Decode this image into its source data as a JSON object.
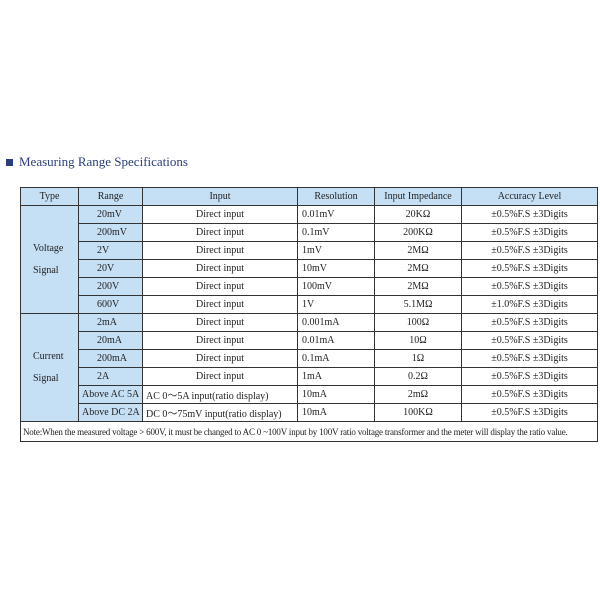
{
  "title": "Measuring Range Specifications",
  "headers": [
    "Type",
    "Range",
    "Input",
    "Resolution",
    "Input Impedance",
    "Accuracy Level"
  ],
  "groups": [
    {
      "type": [
        "Voltage",
        "Signal"
      ],
      "rows": [
        [
          "20mV",
          "Direct input",
          "0.01mV",
          "20KΩ",
          "±0.5%F.S ±3Digits"
        ],
        [
          "200mV",
          "Direct input",
          "0.1mV",
          "200KΩ",
          "±0.5%F.S ±3Digits"
        ],
        [
          "2V",
          "Direct input",
          "1mV",
          "2MΩ",
          "±0.5%F.S ±3Digits"
        ],
        [
          "20V",
          "Direct input",
          "10mV",
          "2MΩ",
          "±0.5%F.S ±3Digits"
        ],
        [
          "200V",
          "Direct input",
          "100mV",
          "2MΩ",
          "±0.5%F.S ±3Digits"
        ],
        [
          "600V",
          "Direct input",
          "1V",
          "5.1MΩ",
          "±1.0%F.S ±3Digits"
        ]
      ]
    },
    {
      "type": [
        "Current",
        "Signal"
      ],
      "rows": [
        [
          "2mA",
          "Direct input",
          "0.001mA",
          "100Ω",
          "±0.5%F.S ±3Digits"
        ],
        [
          "20mA",
          "Direct input",
          "0.01mA",
          "10Ω",
          "±0.5%F.S ±3Digits"
        ],
        [
          "200mA",
          "Direct input",
          "0.1mA",
          "1Ω",
          "±0.5%F.S ±3Digits"
        ],
        [
          "2A",
          "Direct input",
          "1mA",
          "0.2Ω",
          "±0.5%F.S ±3Digits"
        ],
        [
          "Above AC 5A",
          "AC 0～5A input(ratio display)",
          "10mA",
          "2mΩ",
          "±0.5%F.S ±3Digits"
        ],
        [
          "Above DC 2A",
          "DC 0～75mV input(ratio display)",
          "10mA",
          "100KΩ",
          "±0.5%F.S ±3Digits"
        ]
      ]
    }
  ],
  "note": "Note:When the measured voltage > 600V, it must be changed to AC 0 ~100V input by 100V ratio voltage transformer and the meter will display the ratio value.",
  "colors": {
    "header_bg": "#c5dff5",
    "title": "#2a3f7a"
  }
}
